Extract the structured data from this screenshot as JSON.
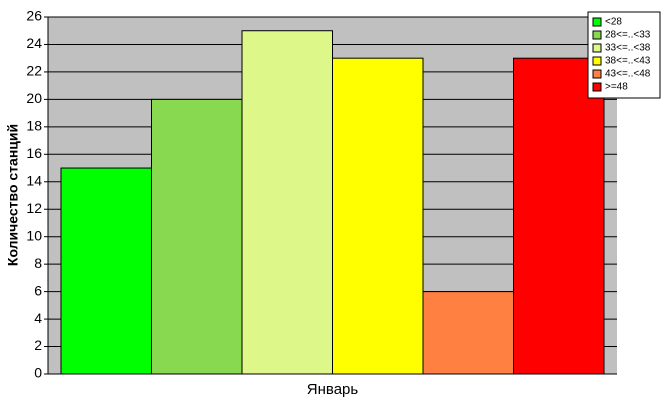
{
  "chart_data": {
    "type": "bar",
    "categories": [
      "Январь"
    ],
    "ylabel": "Количество станций",
    "series": [
      {
        "name": "<28",
        "color": "#00ff00",
        "values": [
          15
        ]
      },
      {
        "name": "28<=..<33",
        "color": "#88d850",
        "values": [
          20
        ]
      },
      {
        "name": "33<=..<38",
        "color": "#ddf888",
        "values": [
          25
        ]
      },
      {
        "name": "38<=..<43",
        "color": "#ffff00",
        "values": [
          23
        ]
      },
      {
        "name": "43<=..<48",
        "color": "#ff8040",
        "values": [
          6
        ]
      },
      {
        "name": ">=48",
        "color": "#ff0000",
        "values": [
          23
        ]
      }
    ],
    "ylim": [
      0,
      26
    ],
    "yticks": [
      0,
      2,
      4,
      6,
      8,
      10,
      12,
      14,
      16,
      18,
      20,
      22,
      24,
      26
    ],
    "grid": true,
    "legend": "top-right"
  }
}
